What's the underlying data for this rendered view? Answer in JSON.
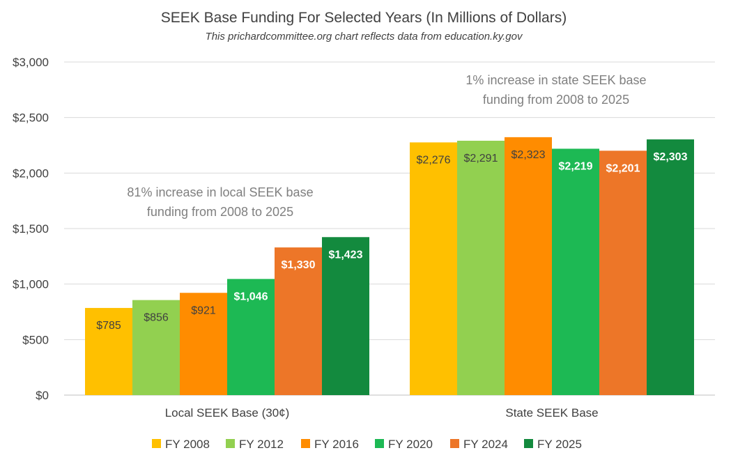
{
  "chart_data": {
    "type": "bar",
    "title": "SEEK Base Funding For Selected Years (In Millions of Dollars)",
    "subtitle": "This prichardcommittee.org chart reflects data from education.ky.gov",
    "categories": [
      "Local SEEK Base (30¢)",
      "State SEEK Base"
    ],
    "series": [
      {
        "name": "FY 2008",
        "color": "#FFC000",
        "values": [
          785,
          2276
        ],
        "labels": [
          "$785",
          "$2,276"
        ],
        "label_style": [
          "dark",
          "dark"
        ]
      },
      {
        "name": "FY 2012",
        "color": "#92D050",
        "values": [
          856,
          2291
        ],
        "labels": [
          "$856",
          "$2,291"
        ],
        "label_style": [
          "dark",
          "dark"
        ]
      },
      {
        "name": "FY 2016",
        "color": "#FF8C00",
        "values": [
          921,
          2323
        ],
        "labels": [
          "$921",
          "$2,323"
        ],
        "label_style": [
          "dark",
          "dark"
        ]
      },
      {
        "name": "FY 2020",
        "color": "#1DB954",
        "values": [
          1046,
          2219
        ],
        "labels": [
          "$1,046",
          "$2,219"
        ],
        "label_style": [
          "light",
          "light"
        ]
      },
      {
        "name": "FY 2024",
        "color": "#ED7628",
        "values": [
          1330,
          2201
        ],
        "labels": [
          "$1,330",
          "$2,201"
        ],
        "label_style": [
          "light",
          "light"
        ]
      },
      {
        "name": "FY 2025",
        "color": "#138A3E",
        "values": [
          1423,
          2303
        ],
        "labels": [
          "$1,423",
          "$2,303"
        ],
        "label_style": [
          "light",
          "light"
        ]
      }
    ],
    "ylim": [
      0,
      3000
    ],
    "yticks": [
      0,
      500,
      1000,
      1500,
      2000,
      2500,
      3000
    ],
    "ytick_labels": [
      "$0",
      "$500",
      "$1,000",
      "$1,500",
      "$2,000",
      "$2,500",
      "$3,000"
    ],
    "xlabel": "",
    "ylabel": "",
    "grid": true,
    "legend_position": "bottom",
    "annotations": [
      {
        "group": 0,
        "lines": [
          "81% increase in local SEEK base",
          "funding from 2008 to 2025"
        ]
      },
      {
        "group": 1,
        "lines": [
          "1% increase in state SEEK base",
          "funding from 2008 to 2025"
        ]
      }
    ]
  }
}
